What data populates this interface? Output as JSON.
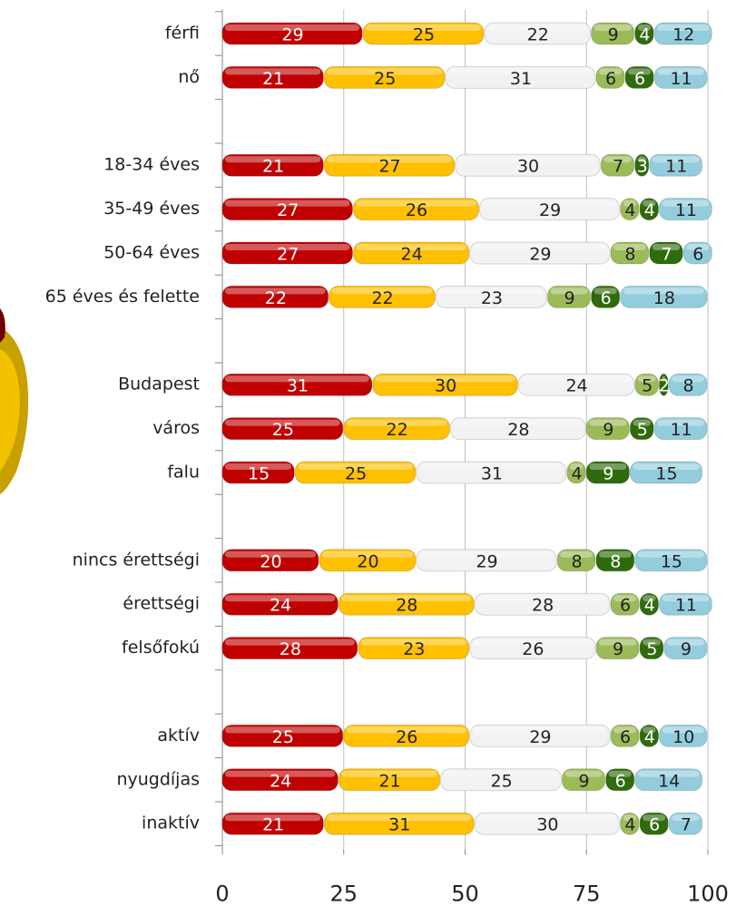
{
  "chart_data": {
    "type": "stacked-bar-horizontal",
    "categories": [
      "férfi",
      "nő",
      null,
      "18-34 éves",
      "35-49 éves",
      "50-64 éves",
      "65 éves és felette",
      null,
      "Budapest",
      "város",
      "falu",
      null,
      "nincs érettségi",
      "érettségi",
      "felsőfokú",
      null,
      "aktív",
      "nyugdíjas",
      "inaktív"
    ],
    "series": [
      {
        "color": "#c00000",
        "values": [
          29,
          21,
          null,
          21,
          27,
          27,
          22,
          null,
          31,
          25,
          15,
          null,
          20,
          24,
          28,
          null,
          25,
          24,
          21
        ]
      },
      {
        "color": "#ffc000",
        "values": [
          25,
          25,
          null,
          27,
          26,
          24,
          22,
          null,
          30,
          22,
          25,
          null,
          20,
          28,
          23,
          null,
          26,
          21,
          31
        ]
      },
      {
        "color": "#f2f2f2",
        "values": [
          22,
          31,
          null,
          30,
          29,
          29,
          23,
          null,
          24,
          28,
          31,
          null,
          29,
          28,
          26,
          null,
          29,
          25,
          30
        ]
      },
      {
        "color": "#9bbb59",
        "values": [
          9,
          6,
          null,
          7,
          4,
          8,
          9,
          null,
          5,
          9,
          4,
          null,
          8,
          6,
          9,
          null,
          6,
          9,
          4
        ]
      },
      {
        "color": "#2f6b0c",
        "values": [
          4,
          6,
          null,
          3,
          4,
          7,
          6,
          null,
          2,
          5,
          9,
          null,
          8,
          4,
          5,
          null,
          4,
          6,
          6
        ]
      },
      {
        "color": "#93cddd",
        "values": [
          12,
          11,
          null,
          11,
          11,
          6,
          18,
          null,
          8,
          11,
          15,
          null,
          15,
          11,
          9,
          null,
          10,
          14,
          7
        ]
      }
    ],
    "xlim": [
      0,
      100
    ],
    "xticks": [
      0,
      25,
      50,
      75,
      100
    ],
    "grid": true
  }
}
